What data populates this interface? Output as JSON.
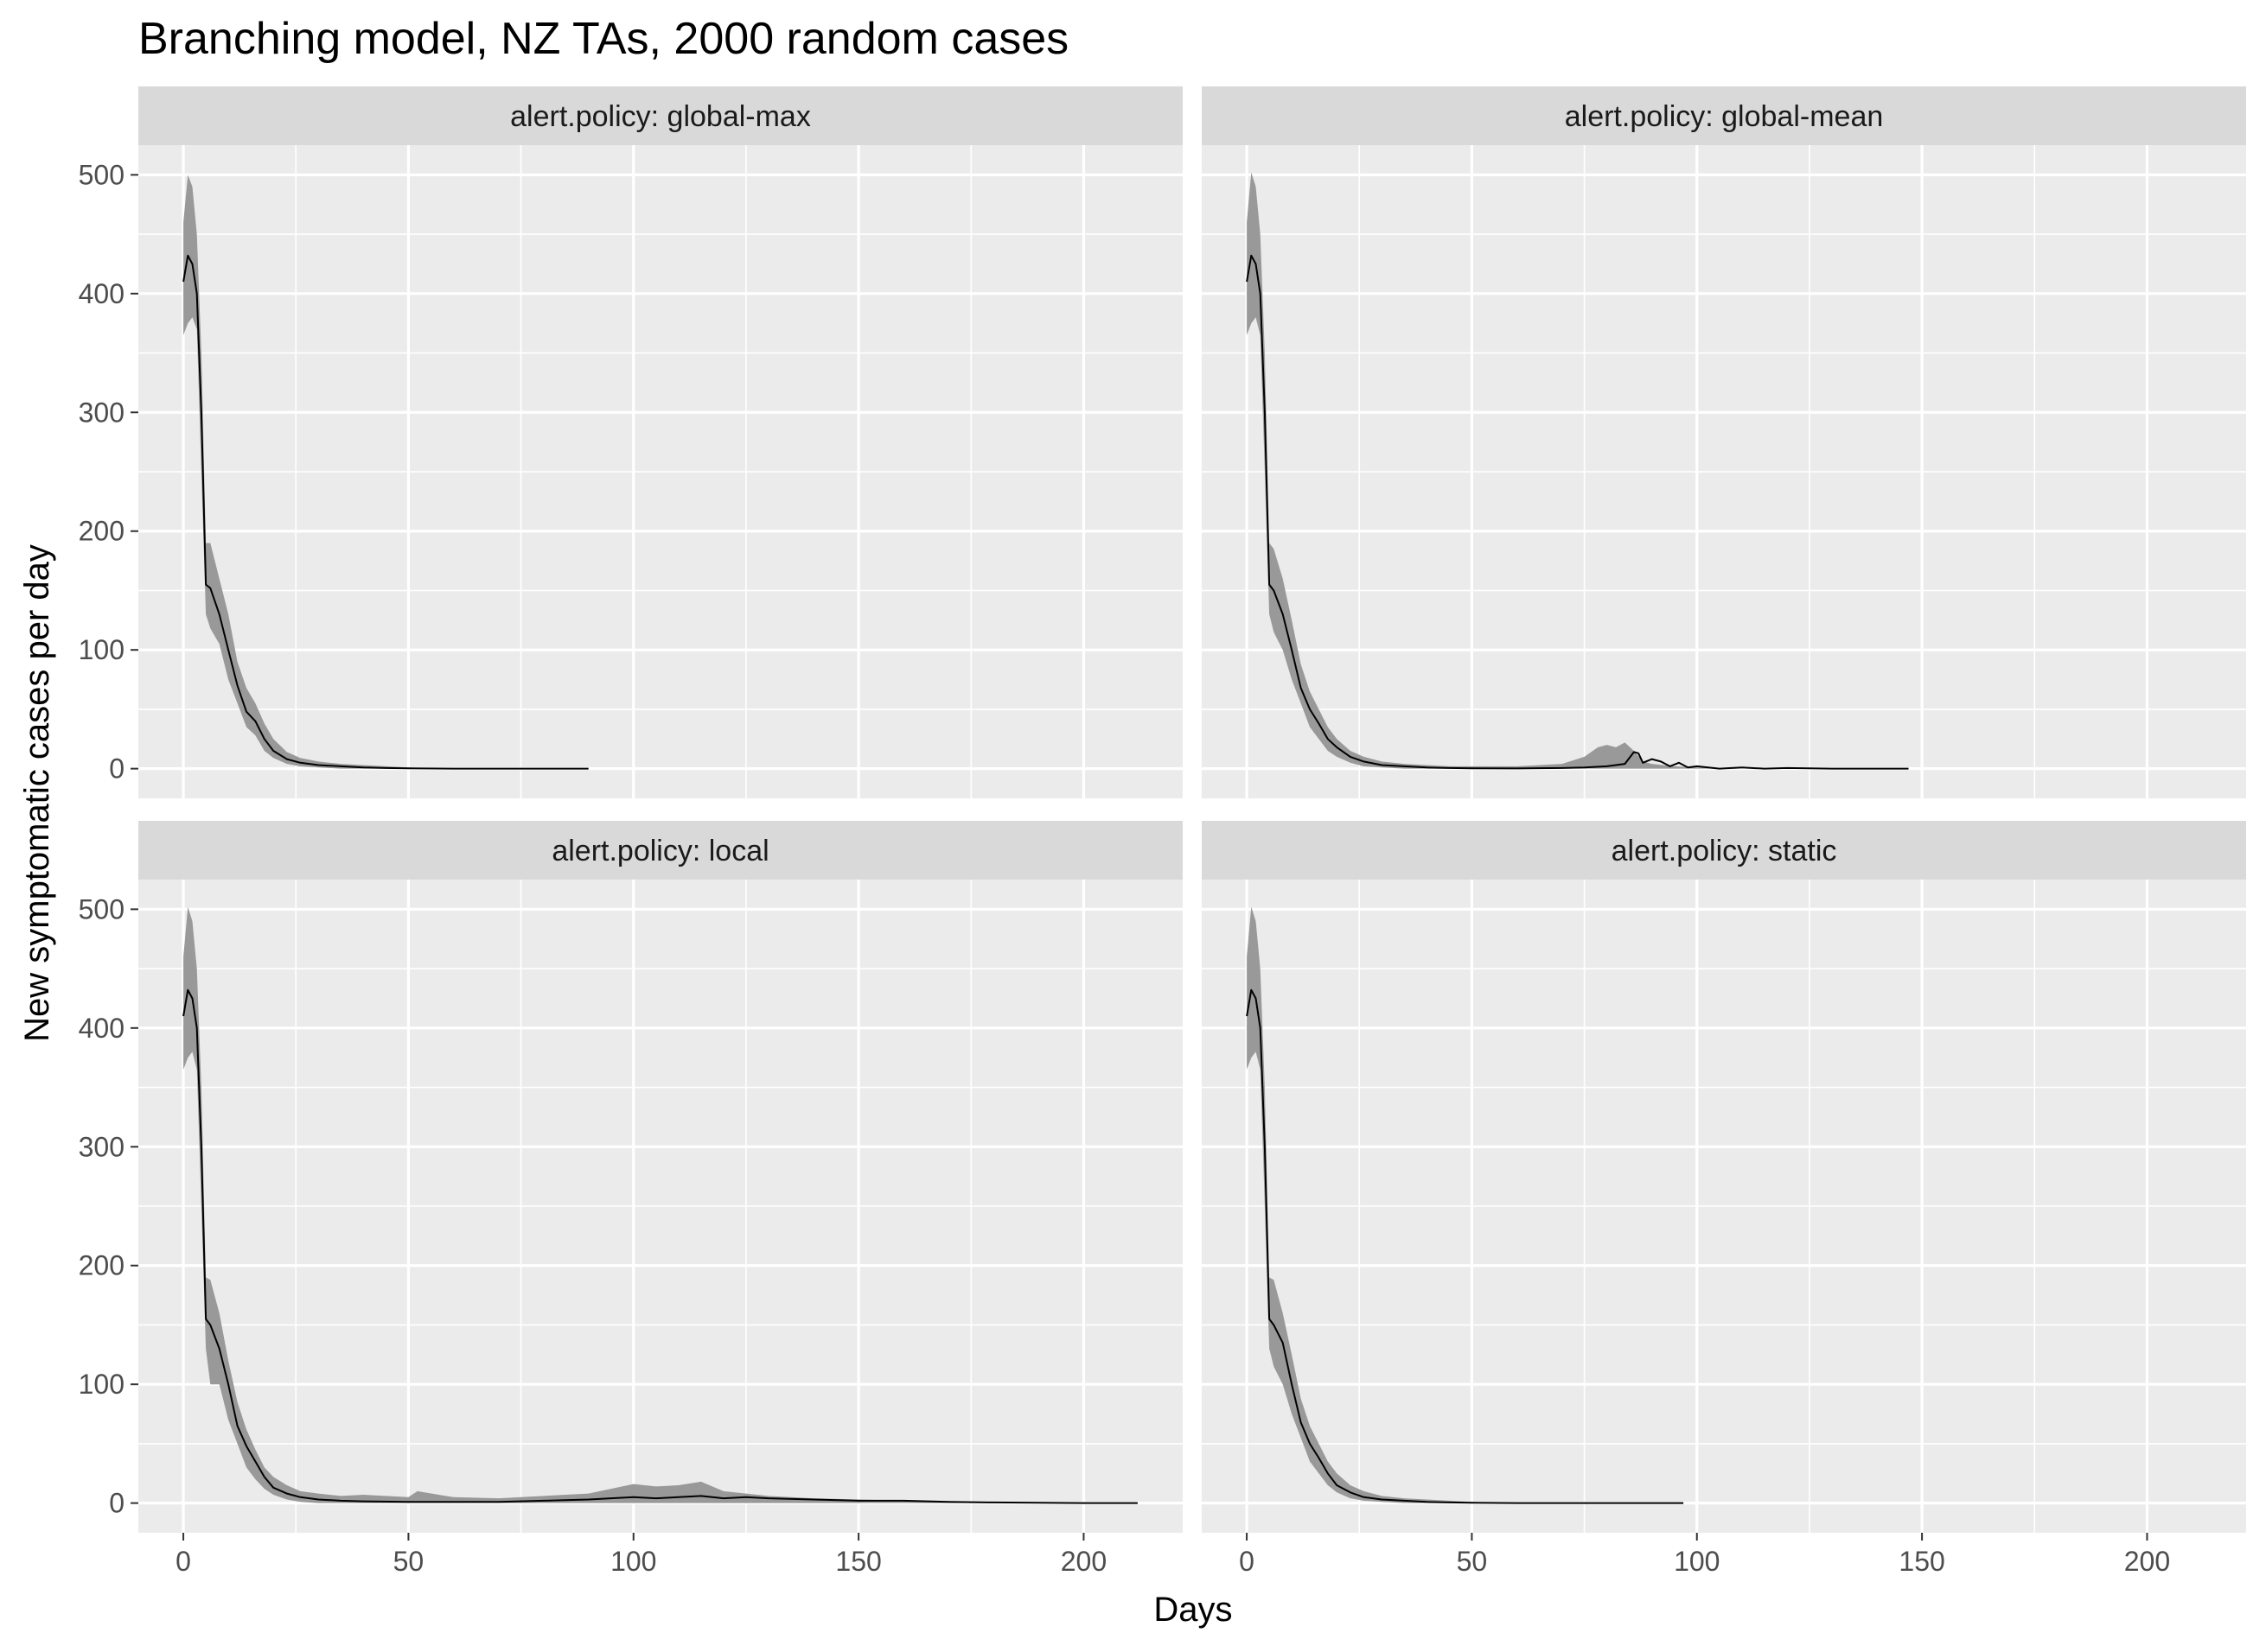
{
  "chart_data": {
    "type": "line",
    "title": "Branching model, NZ TAs, 2000 random cases",
    "xlabel": "Days",
    "ylabel": "New symptomatic cases per day",
    "facet_layout": "2x2 grid",
    "xlim": [
      -10,
      222
    ],
    "ylim": [
      -25,
      525
    ],
    "x_ticks": [
      0,
      50,
      100,
      150,
      200
    ],
    "y_ticks": [
      0,
      100,
      200,
      300,
      400,
      500
    ],
    "grid": true,
    "legend": "none",
    "colors": {
      "panel_background": "#ebebeb",
      "strip_background": "#d9d9d9",
      "gridline": "#ffffff",
      "ribbon": "#999999",
      "line": "#000000"
    },
    "panels": [
      {
        "strip_label": "alert.policy: global-max",
        "series": [
          {
            "name": "",
            "role": "median",
            "x": [
              0,
              1,
              2,
              3,
              4,
              5,
              6,
              8,
              10,
              12,
              14,
              16,
              18,
              20,
              23,
              26,
              30,
              35,
              40,
              45,
              50,
              60,
              70,
              80,
              90
            ],
            "y": [
              410,
              432,
              425,
              400,
              300,
              155,
              152,
              130,
              100,
              70,
              48,
              40,
              25,
              15,
              8,
              5,
              3,
              2,
              1,
              0.5,
              0.3,
              0,
              0,
              0,
              0
            ]
          },
          {
            "name": "",
            "role": "lower",
            "x": [
              0,
              1,
              2,
              3,
              4,
              5,
              6,
              8,
              10,
              12,
              14,
              16,
              18,
              20,
              23,
              26,
              30,
              35,
              40,
              45,
              50,
              60,
              70,
              80,
              90
            ],
            "y": [
              365,
              375,
              380,
              370,
              250,
              130,
              118,
              105,
              75,
              55,
              35,
              28,
              15,
              9,
              4,
              2,
              1,
              0,
              0,
              0,
              0,
              0,
              0,
              0,
              0
            ]
          },
          {
            "name": "",
            "role": "upper",
            "x": [
              0,
              1,
              2,
              3,
              4,
              5,
              6,
              8,
              10,
              12,
              14,
              16,
              18,
              20,
              23,
              26,
              30,
              35,
              40,
              45,
              50,
              60,
              70,
              80,
              90
            ],
            "y": [
              460,
              500,
              490,
              450,
              350,
              190,
              190,
              160,
              130,
              90,
              68,
              55,
              38,
              25,
              14,
              9,
              6,
              4,
              3,
              2,
              1,
              0,
              0,
              0,
              0
            ]
          }
        ]
      },
      {
        "strip_label": "alert.policy: global-mean",
        "series": [
          {
            "name": "",
            "role": "median",
            "x": [
              0,
              1,
              2,
              3,
              4,
              5,
              6,
              8,
              10,
              12,
              14,
              16,
              18,
              20,
              23,
              26,
              30,
              35,
              40,
              45,
              50,
              60,
              70,
              75,
              80,
              84,
              86,
              87,
              88,
              90,
              92,
              94,
              96,
              98,
              100,
              105,
              110,
              115,
              120,
              130,
              147
            ],
            "y": [
              410,
              432,
              425,
              400,
              300,
              155,
              150,
              130,
              100,
              68,
              50,
              38,
              25,
              18,
              10,
              6,
              3,
              2,
              1,
              0.5,
              0.3,
              0.2,
              0.5,
              1,
              2,
              4,
              14,
              13,
              5,
              8,
              6,
              2,
              5,
              1,
              2,
              0,
              1,
              0,
              0.5,
              0,
              0
            ]
          },
          {
            "name": "",
            "role": "lower",
            "x": [
              0,
              1,
              2,
              3,
              4,
              5,
              6,
              8,
              10,
              12,
              14,
              16,
              18,
              20,
              23,
              26,
              30,
              35,
              40,
              45,
              50,
              60,
              70,
              75,
              80,
              84,
              86,
              88,
              90,
              95,
              100,
              110,
              120,
              130,
              147
            ],
            "y": [
              365,
              375,
              380,
              365,
              250,
              130,
              115,
              100,
              75,
              55,
              35,
              25,
              15,
              10,
              5,
              2,
              1,
              0,
              0,
              0,
              0,
              0,
              0,
              0,
              0,
              0,
              0,
              0,
              0,
              0,
              0,
              0,
              0,
              0,
              0
            ]
          },
          {
            "name": "",
            "role": "upper",
            "x": [
              0,
              1,
              2,
              3,
              4,
              5,
              6,
              8,
              10,
              12,
              14,
              16,
              18,
              20,
              23,
              26,
              30,
              35,
              40,
              45,
              50,
              60,
              70,
              75,
              78,
              80,
              82,
              84,
              86,
              88,
              90,
              95,
              100,
              110,
              120,
              130,
              147
            ],
            "y": [
              460,
              502,
              490,
              450,
              350,
              190,
              185,
              160,
              125,
              88,
              65,
              50,
              35,
              25,
              15,
              10,
              6,
              4,
              3,
              2,
              2,
              2,
              4,
              10,
              18,
              20,
              18,
              22,
              15,
              6,
              4,
              2,
              1,
              0,
              0,
              0,
              0
            ]
          }
        ]
      },
      {
        "strip_label": "alert.policy: local",
        "series": [
          {
            "name": "",
            "role": "median",
            "x": [
              0,
              1,
              2,
              3,
              4,
              5,
              6,
              8,
              10,
              12,
              14,
              16,
              18,
              20,
              23,
              26,
              30,
              35,
              40,
              50,
              60,
              70,
              80,
              90,
              100,
              105,
              110,
              115,
              120,
              125,
              130,
              140,
              150,
              160,
              170,
              180,
              190,
              200,
              212
            ],
            "y": [
              410,
              432,
              425,
              400,
              300,
              155,
              150,
              130,
              100,
              65,
              48,
              35,
              22,
              13,
              8,
              5,
              3,
              2,
              1.5,
              1,
              1,
              1,
              2,
              3,
              5,
              4,
              5,
              6,
              4,
              5,
              4,
              3,
              2,
              2,
              1,
              0.5,
              0.3,
              0,
              0
            ]
          },
          {
            "name": "",
            "role": "lower",
            "x": [
              0,
              1,
              2,
              3,
              4,
              5,
              6,
              8,
              10,
              12,
              14,
              16,
              18,
              20,
              23,
              26,
              30,
              35,
              40,
              50,
              60,
              70,
              80,
              90,
              100,
              110,
              120,
              130,
              140,
              150,
              160,
              170,
              180,
              190,
              200,
              212
            ],
            "y": [
              365,
              375,
              380,
              365,
              250,
              130,
              100,
              100,
              70,
              50,
              30,
              20,
              12,
              7,
              3,
              1,
              0,
              0,
              0,
              0,
              0,
              0,
              0,
              0,
              0,
              0,
              0,
              0,
              0,
              0,
              0,
              0,
              0,
              0,
              0,
              0
            ]
          },
          {
            "name": "",
            "role": "upper",
            "x": [
              0,
              1,
              2,
              3,
              4,
              5,
              6,
              8,
              10,
              12,
              14,
              16,
              18,
              20,
              23,
              26,
              30,
              35,
              40,
              50,
              52,
              60,
              70,
              80,
              90,
              95,
              100,
              105,
              110,
              115,
              120,
              125,
              130,
              140,
              150,
              160,
              170,
              180,
              190,
              200,
              212
            ],
            "y": [
              460,
              502,
              490,
              450,
              350,
              190,
              188,
              160,
              120,
              85,
              62,
              45,
              30,
              22,
              15,
              10,
              8,
              6,
              7,
              5,
              10,
              5,
              4,
              6,
              8,
              12,
              16,
              14,
              15,
              18,
              10,
              8,
              6,
              4,
              3,
              2,
              1,
              0.5,
              0.3,
              0,
              0
            ]
          }
        ]
      },
      {
        "strip_label": "alert.policy: static",
        "series": [
          {
            "name": "",
            "role": "median",
            "x": [
              0,
              1,
              2,
              3,
              4,
              5,
              6,
              8,
              10,
              12,
              14,
              16,
              18,
              20,
              23,
              26,
              30,
              35,
              40,
              45,
              50,
              60,
              70,
              80,
              97
            ],
            "y": [
              410,
              432,
              425,
              400,
              300,
              155,
              150,
              135,
              100,
              68,
              50,
              38,
              25,
              15,
              9,
              5,
              3,
              2,
              1,
              0.5,
              0.3,
              0,
              0,
              0,
              0
            ]
          },
          {
            "name": "",
            "role": "lower",
            "x": [
              0,
              1,
              2,
              3,
              4,
              5,
              6,
              8,
              10,
              12,
              14,
              16,
              18,
              20,
              23,
              26,
              30,
              35,
              40,
              45,
              50,
              60,
              70,
              80,
              97
            ],
            "y": [
              365,
              375,
              380,
              365,
              250,
              130,
              115,
              100,
              75,
              55,
              35,
              25,
              15,
              9,
              4,
              2,
              1,
              0,
              0,
              0,
              0,
              0,
              0,
              0,
              0
            ]
          },
          {
            "name": "",
            "role": "upper",
            "x": [
              0,
              1,
              2,
              3,
              4,
              5,
              6,
              8,
              10,
              12,
              14,
              16,
              18,
              20,
              23,
              26,
              30,
              35,
              40,
              45,
              50,
              60,
              70,
              80,
              97
            ],
            "y": [
              460,
              502,
              490,
              450,
              350,
              190,
              188,
              160,
              125,
              88,
              65,
              50,
              35,
              25,
              15,
              10,
              6,
              4,
              3,
              2,
              1,
              0,
              0,
              0,
              0
            ]
          }
        ]
      }
    ]
  }
}
